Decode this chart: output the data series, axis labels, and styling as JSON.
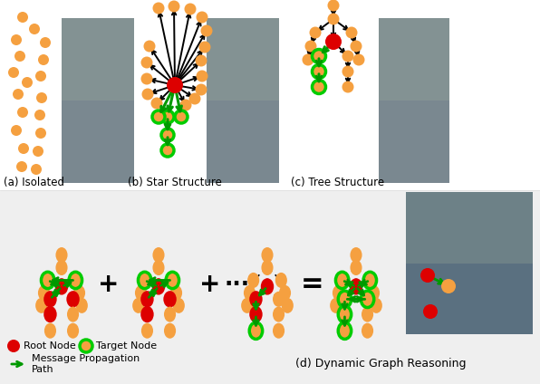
{
  "bg_color": "#ffffff",
  "panel_bg": "#EFEFEF",
  "orange": "#F5A040",
  "red": "#DD0000",
  "green": "#009900",
  "caption_a": "(a) Isolated",
  "caption_b": "(b) Star Structure",
  "caption_c": "(c) Tree Structure",
  "caption_d": "(d) Dynamic Graph Reasoning",
  "legend_root": "Root Node",
  "legend_target": "Target Node",
  "legend_msg": "Message Propagation\nPath"
}
